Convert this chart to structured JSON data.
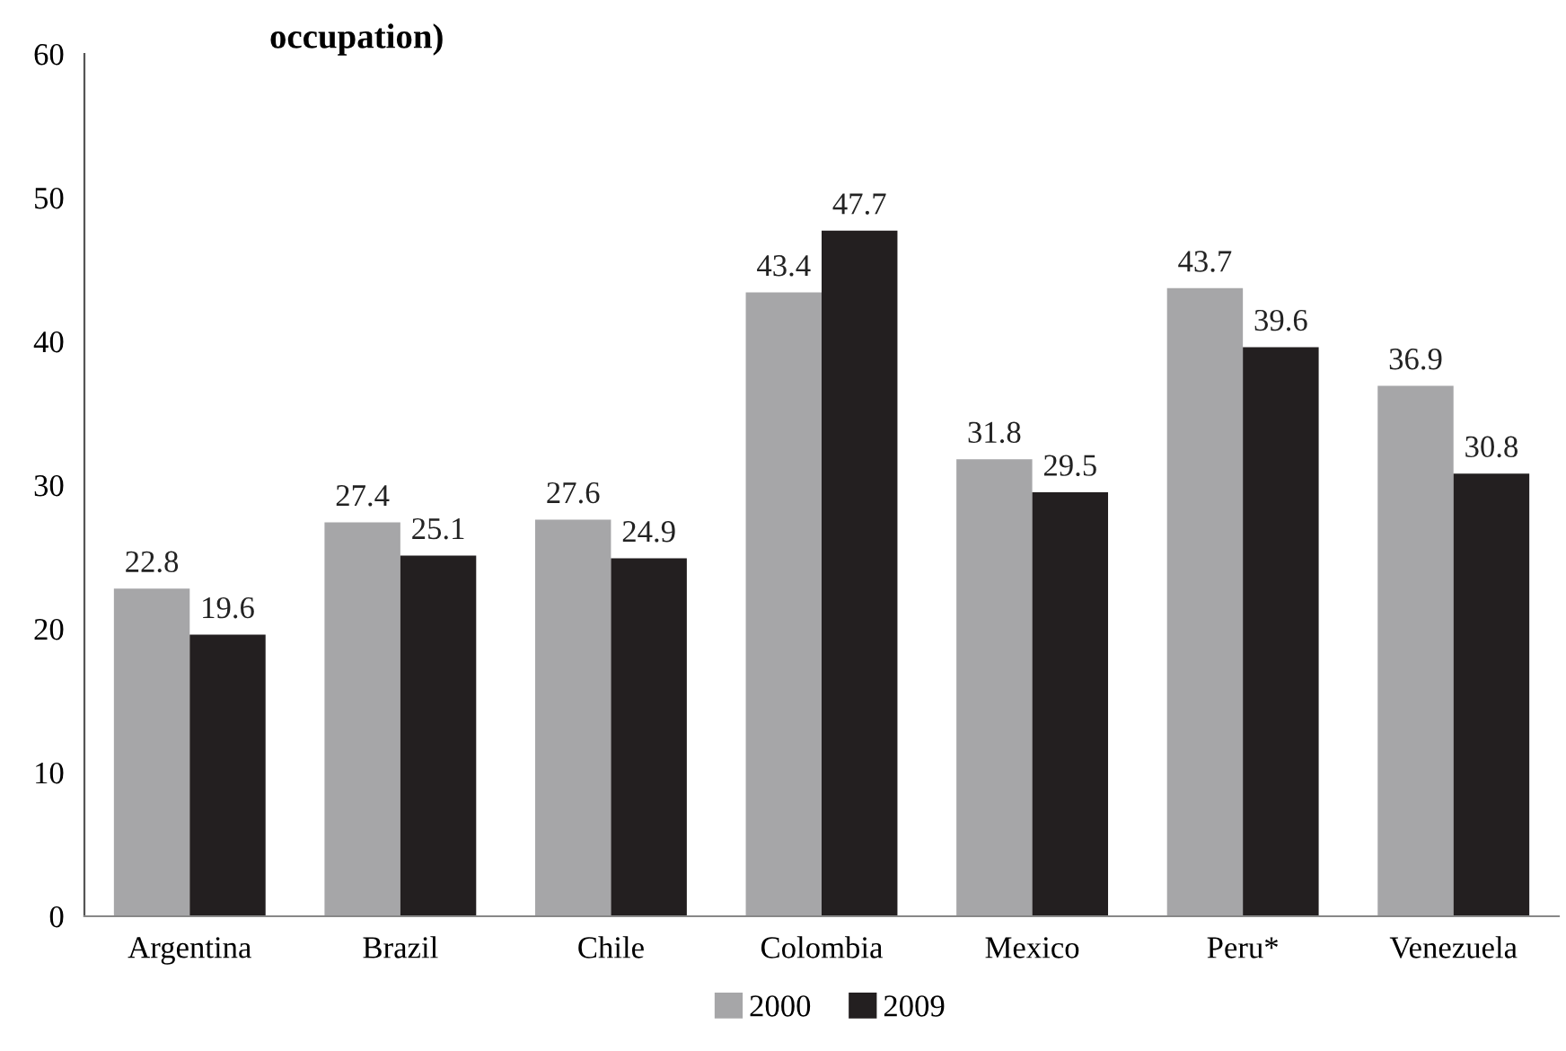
{
  "chart_data": {
    "type": "bar",
    "title": "occupation)",
    "categories": [
      "Argentina",
      "Brazil",
      "Chile",
      "Colombia",
      "Mexico",
      "Peru*",
      "Venezuela"
    ],
    "series": [
      {
        "name": "2000",
        "color": "#a6a6a8",
        "values": [
          22.8,
          27.4,
          27.6,
          43.4,
          31.8,
          43.7,
          36.9
        ]
      },
      {
        "name": "2009",
        "color": "#231f20",
        "values": [
          19.6,
          25.1,
          24.9,
          47.7,
          29.5,
          39.6,
          30.8
        ]
      }
    ],
    "ylim": [
      0,
      60
    ],
    "yticks": [
      0,
      10,
      20,
      30,
      40,
      50,
      60
    ],
    "grid": false,
    "legend": "bottom",
    "data_labels": true
  }
}
